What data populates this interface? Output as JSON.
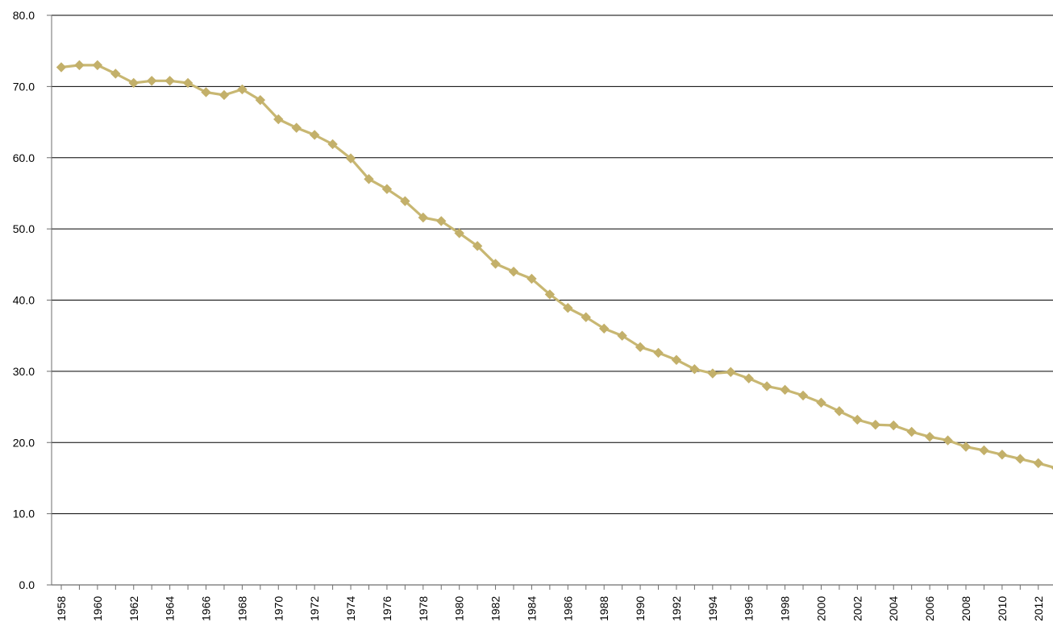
{
  "chart_data": {
    "type": "line",
    "title": "",
    "xlabel": "",
    "ylabel": "",
    "ylim": [
      0,
      80
    ],
    "yticks": [
      "0.0",
      "10.0",
      "20.0",
      "30.0",
      "40.0",
      "50.0",
      "60.0",
      "70.0",
      "80.0"
    ],
    "xtick_labels": [
      "1958",
      "1960",
      "1962",
      "1964",
      "1966",
      "1968",
      "1970",
      "1972",
      "1974",
      "1976",
      "1978",
      "1980",
      "1982",
      "1984",
      "1986",
      "1988",
      "1990",
      "1992",
      "1994",
      "1996",
      "1998",
      "2000",
      "2002",
      "2004",
      "2006",
      "2008",
      "2010",
      "2012"
    ],
    "grid": true,
    "legend": "none",
    "x": [
      1958,
      1959,
      1960,
      1961,
      1962,
      1963,
      1964,
      1965,
      1966,
      1967,
      1968,
      1969,
      1970,
      1971,
      1972,
      1973,
      1974,
      1975,
      1976,
      1977,
      1978,
      1979,
      1980,
      1981,
      1982,
      1983,
      1984,
      1985,
      1986,
      1987,
      1988,
      1989,
      1990,
      1991,
      1992,
      1993,
      1994,
      1995,
      1996,
      1997,
      1998,
      1999,
      2000,
      2001,
      2002,
      2003,
      2004,
      2005,
      2006,
      2007,
      2008,
      2009,
      2010,
      2011,
      2012,
      2013
    ],
    "series": [
      {
        "values": [
          72.7,
          73.0,
          73.0,
          71.8,
          70.5,
          70.8,
          70.8,
          70.5,
          69.2,
          68.8,
          69.6,
          68.1,
          65.4,
          64.2,
          63.2,
          61.9,
          59.9,
          57.0,
          55.6,
          53.9,
          51.6,
          51.1,
          49.4,
          47.6,
          45.1,
          44.0,
          43.0,
          40.8,
          38.9,
          37.6,
          36.0,
          35.0,
          33.4,
          32.6,
          31.6,
          30.3,
          29.7,
          29.9,
          29.0,
          27.9,
          27.4,
          26.6,
          25.6,
          24.4,
          23.2,
          22.5,
          22.4,
          21.5,
          20.8,
          20.3,
          19.4,
          18.9,
          18.3,
          17.7,
          17.1,
          16.4
        ]
      }
    ],
    "colors": {
      "line": "#c8b772",
      "marker": "#c3b06a",
      "grid": "#000000",
      "background": "#ffffff"
    }
  }
}
